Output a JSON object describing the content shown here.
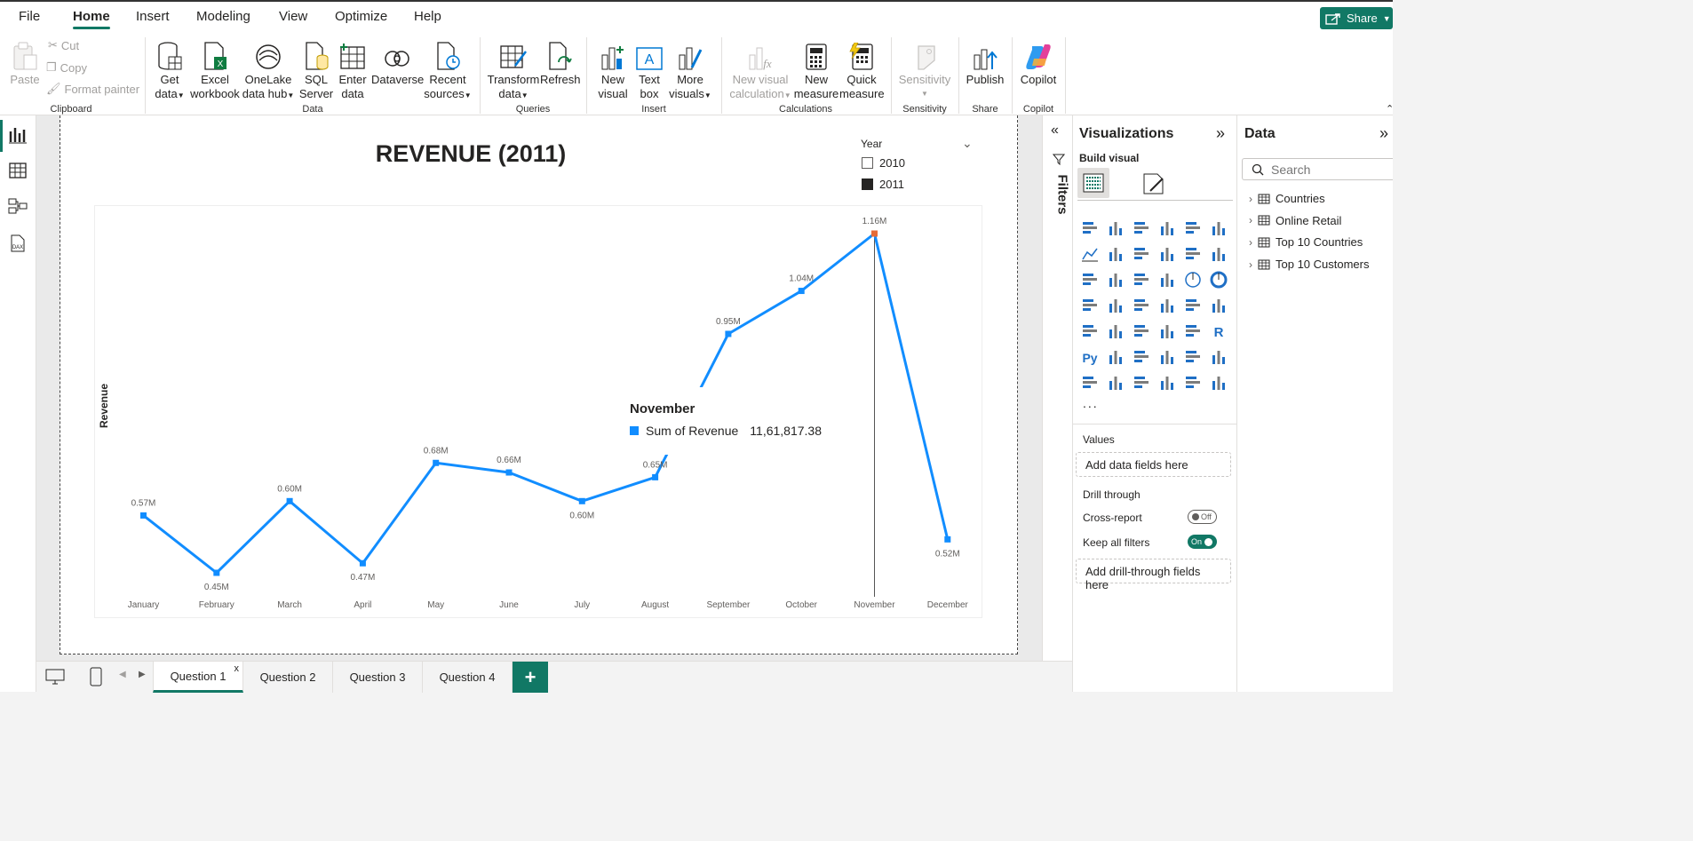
{
  "menu": {
    "file": "File",
    "home": "Home",
    "insert": "Insert",
    "modeling": "Modeling",
    "view": "View",
    "optimize": "Optimize",
    "help": "Help",
    "share": "Share"
  },
  "ribbon": {
    "clipboard": {
      "paste": "Paste",
      "cut": "Cut",
      "copy": "Copy",
      "format_painter": "Format painter",
      "group": "Clipboard"
    },
    "data": {
      "get_data": [
        "Get",
        "data"
      ],
      "excel": [
        "Excel",
        "workbook"
      ],
      "onelake": [
        "OneLake",
        "data hub"
      ],
      "sql": [
        "SQL",
        "Server"
      ],
      "enter": [
        "Enter",
        "data"
      ],
      "dataverse": "Dataverse",
      "recent": [
        "Recent",
        "sources"
      ],
      "group": "Data"
    },
    "queries": {
      "transform": [
        "Transform",
        "data"
      ],
      "refresh": "Refresh",
      "group": "Queries"
    },
    "insert": {
      "new_visual": [
        "New",
        "visual"
      ],
      "text_box": [
        "Text",
        "box"
      ],
      "more_visuals": [
        "More",
        "visuals"
      ],
      "group": "Insert"
    },
    "calculations": {
      "new_visual_calc": [
        "New visual",
        "calculation"
      ],
      "new_measure": [
        "New",
        "measure"
      ],
      "quick_measure": [
        "Quick",
        "measure"
      ],
      "group": "Calculations"
    },
    "sensitivity": {
      "label": "Sensitivity",
      "group": "Sensitivity"
    },
    "share": {
      "publish": "Publish",
      "group": "Share"
    },
    "copilot": {
      "label": "Copilot",
      "group": "Copilot"
    }
  },
  "report": {
    "title": "REVENUE (2011)",
    "slicer": {
      "title": "Year",
      "options": [
        {
          "label": "2010",
          "checked": false
        },
        {
          "label": "2011",
          "checked": true
        }
      ]
    }
  },
  "chart_data": {
    "type": "line",
    "categories": [
      "January",
      "February",
      "March",
      "April",
      "May",
      "June",
      "July",
      "August",
      "September",
      "October",
      "November",
      "December"
    ],
    "series": [
      {
        "values": [
          0.57,
          0.45,
          0.6,
          0.47,
          0.68,
          0.66,
          0.6,
          0.65,
          0.95,
          1.04,
          1.16,
          0.52
        ]
      }
    ],
    "data_labels": [
      "0.57M",
      "0.45M",
      "0.60M",
      "0.47M",
      "0.68M",
      "0.66M",
      "0.60M",
      "0.65M",
      "0.95M",
      "1.04M",
      "1.16M",
      "0.52M"
    ],
    "ylabel": "Revenue",
    "ylim": [
      0.4,
      1.2
    ],
    "highlight_index": 10,
    "color": "#118dff",
    "highlight_color": "#e66c37"
  },
  "tooltip": {
    "title": "November",
    "series": "Sum of Revenue",
    "value": "11,61,817.38"
  },
  "filters": {
    "label": "Filters"
  },
  "visualizations": {
    "title": "Visualizations",
    "build_visual": "Build visual",
    "more": "...",
    "values_label": "Values",
    "values_placeholder": "Add data fields here",
    "drill_through": "Drill through",
    "cross_report": "Cross-report",
    "cross_report_state": "Off",
    "keep_filters": "Keep all filters",
    "keep_filters_state": "On",
    "drill_placeholder": "Add drill-through fields here"
  },
  "data_pane": {
    "title": "Data",
    "search_placeholder": "Search",
    "tables": [
      "Countries",
      "Online Retail",
      "Top 10 Countries",
      "Top 10 Customers"
    ]
  },
  "pages": {
    "tabs": [
      "Question 1",
      "Question 2",
      "Question 3",
      "Question 4"
    ],
    "close": "x",
    "add": "+"
  }
}
